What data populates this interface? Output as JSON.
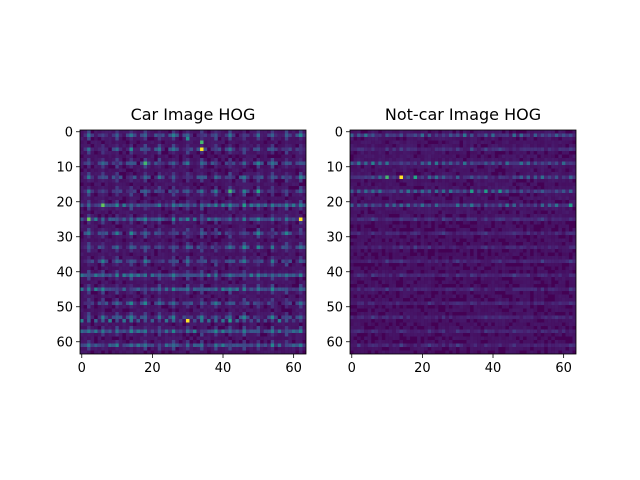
{
  "chart_data": [
    {
      "type": "heatmap",
      "title": "Car Image HOG",
      "xlabel": "",
      "ylabel": "",
      "x_ticks": [
        0,
        20,
        40,
        60
      ],
      "y_ticks": [
        0,
        10,
        20,
        30,
        40,
        50,
        60
      ],
      "xlim": [
        -0.5,
        63.5
      ],
      "ylim": [
        63.5,
        -0.5
      ],
      "grid": false,
      "colormap": "viridis",
      "value_range": [
        0,
        1
      ],
      "hot_cells": [
        {
          "x": 34,
          "y": 5,
          "value": 1.0
        },
        {
          "x": 30,
          "y": 54,
          "value": 1.0
        },
        {
          "x": 62,
          "y": 25,
          "value": 1.0
        },
        {
          "x": 6,
          "y": 21,
          "value": 0.85
        },
        {
          "x": 2,
          "y": 25,
          "value": 0.85
        },
        {
          "x": 18,
          "y": 9,
          "value": 0.8
        },
        {
          "x": 42,
          "y": 17,
          "value": 0.8
        },
        {
          "x": 50,
          "y": 17,
          "value": 0.75
        },
        {
          "x": 46,
          "y": 21,
          "value": 0.7
        },
        {
          "x": 42,
          "y": 54,
          "value": 0.7
        },
        {
          "x": 30,
          "y": 2,
          "value": 0.6
        },
        {
          "x": 34,
          "y": 3,
          "value": 0.8
        }
      ]
    },
    {
      "type": "heatmap",
      "title": "Not-car Image HOG",
      "xlabel": "",
      "ylabel": "",
      "x_ticks": [
        0,
        20,
        40,
        60
      ],
      "y_ticks": [
        0,
        10,
        20,
        30,
        40,
        50,
        60
      ],
      "xlim": [
        -0.5,
        63.5
      ],
      "ylim": [
        63.5,
        -0.5
      ],
      "grid": false,
      "colormap": "viridis",
      "value_range": [
        0,
        1
      ],
      "hot_cells": [
        {
          "x": 14,
          "y": 13,
          "value": 1.0
        },
        {
          "x": 10,
          "y": 13,
          "value": 0.8
        },
        {
          "x": 18,
          "y": 13,
          "value": 0.75
        },
        {
          "x": 34,
          "y": 17,
          "value": 0.7
        },
        {
          "x": 38,
          "y": 17,
          "value": 0.7
        },
        {
          "x": 42,
          "y": 17,
          "value": 0.65
        },
        {
          "x": 62,
          "y": 21,
          "value": 0.7
        },
        {
          "x": 6,
          "y": 9,
          "value": 0.55
        },
        {
          "x": 2,
          "y": 9,
          "value": 0.5
        }
      ]
    }
  ],
  "colors": {
    "viridis_low": "#440154",
    "viridis_mid": "#21918c",
    "viridis_high": "#fde725"
  }
}
